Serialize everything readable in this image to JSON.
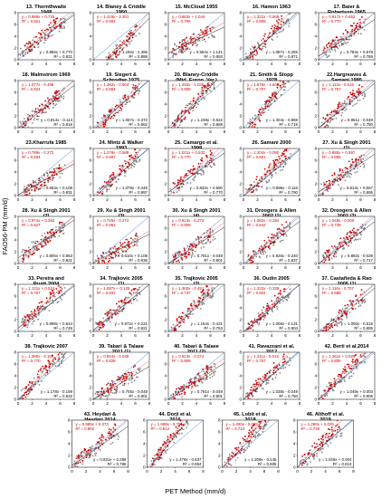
{
  "figure": {
    "xlabel": "PET Method (mm/d)",
    "ylabel": "FAO56-PM (mm/d)",
    "colors": {
      "before": "#d40000",
      "after": "#8a8a8a",
      "line_before": "#ff6a6a",
      "line_after": "#202020"
    }
  },
  "chart_data": [
    {
      "type": "scatter",
      "title": "13. Thornthwaite 1948",
      "axis_max": 8,
      "xticks": [
        0,
        2,
        4,
        6,
        8
      ],
      "yticks": [
        0,
        2,
        4,
        6,
        8
      ],
      "eq_red": [
        "y = 0.986x + 0.725",
        "R² = 0.821"
      ],
      "eq_gray": [
        "y = 0.856x + 0.770",
        "R² = 0.821"
      ]
    },
    {
      "type": "scatter",
      "title": "14. Blaney & Criddle 1950",
      "axis_max": 8,
      "xticks": [
        0,
        2,
        4,
        6,
        8
      ],
      "yticks": [
        0,
        2,
        4,
        6,
        8
      ],
      "eq_red": [
        "y = 1.419x - 3.301",
        "R² = 0.904"
      ],
      "eq_gray": [
        "y = 1.192x - 2.486",
        "R² = 0.888"
      ]
    },
    {
      "type": "scatter",
      "title": "15. McCloud 1955",
      "axis_max": 8,
      "xticks": [
        0,
        2,
        4,
        6,
        8
      ],
      "yticks": [
        0,
        2,
        4,
        6,
        8
      ],
      "eq_red": [
        "y = 0.663x + 1.044",
        "R² = 0.706"
      ],
      "eq_gray": [
        "y = 0.554x + 1.141",
        "R² = 0.693"
      ]
    },
    {
      "type": "scatter",
      "title": "16. Hamon 1963",
      "axis_max": 8,
      "xticks": [
        0,
        2,
        4,
        6,
        8
      ],
      "yticks": [
        0,
        2,
        4,
        6,
        8
      ],
      "eq_red": [
        "y = 1.321x - 0.669",
        "R² = 0.908"
      ],
      "eq_gray": [
        "y = 1.087x - 0.265",
        "R² = 0.871"
      ]
    },
    {
      "type": "scatter",
      "title": "17. Baier & Robertson 1965",
      "axis_max": 8,
      "xticks": [
        0,
        2,
        4,
        6,
        8
      ],
      "yticks": [
        0,
        2,
        4,
        6,
        8
      ],
      "eq_red": [
        "y = 0.917x + 0.652",
        "R² = 0.770"
      ],
      "eq_gray": [
        "y = 0.783x + 0.578",
        "R² = 0.766"
      ]
    },
    {
      "type": "scatter",
      "title": "18. Malmstrom 1969",
      "axis_max": 8,
      "xticks": [
        0,
        2,
        4,
        6,
        8
      ],
      "yticks": [
        0,
        2,
        4,
        6,
        8
      ],
      "eq_red": [
        "y = 1.077x - 0.498",
        "R² = 0.824"
      ],
      "eq_gray": [
        "y = 0.914x - 0.114",
        "R² = 0.818"
      ]
    },
    {
      "type": "scatter",
      "title": "19. Siegert & Schrodter 1975",
      "axis_max": 8,
      "xticks": [
        0,
        2,
        4,
        6,
        8
      ],
      "yticks": [
        0,
        2,
        4,
        6,
        8
      ],
      "eq_red": [
        "y = 1.262x - 0.904",
        "R² = 0.864"
      ],
      "eq_gray": [
        "y = 1.067x - 0.372",
        "R² = 0.862"
      ]
    },
    {
      "type": "scatter",
      "title": "20. Blaney-Criddle (Mid. Europ. Ver.)",
      "axis_max": 8,
      "xticks": [
        0,
        2,
        4,
        6,
        8
      ],
      "yticks": [
        0,
        2,
        4,
        6,
        8
      ],
      "eq_red": [
        "y = 1.492x - 1.030",
        "R² = 0.908"
      ],
      "eq_gray": [
        "y = 1.248x - 0.522",
        "R² = 0.888"
      ]
    },
    {
      "type": "scatter",
      "title": "21. Smith & Stopp 1978",
      "axis_max": 8,
      "xticks": [
        0,
        2,
        4,
        6,
        8
      ],
      "yticks": [
        0,
        2,
        4,
        6,
        8
      ],
      "eq_red": [
        "y = 1.679x - 1.848",
        "R² = 0.707"
      ],
      "eq_gray": [
        "y = 1.404x - 0.969",
        "R² = 0.719"
      ]
    },
    {
      "type": "scatter",
      "title": "22.Hargreaves & Samani 1985",
      "axis_max": 8,
      "xticks": [
        0,
        2,
        4,
        6,
        8
      ],
      "yticks": [
        0,
        2,
        4,
        6,
        8
      ],
      "eq_red": [
        "y = 1.113x - 0.015",
        "R² = 0.757"
      ],
      "eq_gray": [
        "y = 0.951x - 0.049",
        "R² = 0.750"
      ]
    },
    {
      "type": "scatter",
      "title": "23.Kharrufa 1985",
      "axis_max": 8,
      "xticks": [
        0,
        2,
        4,
        6,
        8
      ],
      "yticks": [
        0,
        2,
        4,
        6,
        8
      ],
      "eq_red": [
        "y = 0.789x - 0.272",
        "R² = 0.834"
      ],
      "eq_gray": [
        "y = 0.664x + 0.108",
        "R² = 0.831"
      ]
    },
    {
      "type": "scatter",
      "title": "24. Mintz & Walker 1993",
      "axis_max": 8,
      "xticks": [
        0,
        2,
        4,
        6,
        8
      ],
      "yticks": [
        0,
        2,
        4,
        6,
        8
      ],
      "eq_red": [
        "y = 1.278x - 0.689",
        "R² = 0.897"
      ],
      "eq_gray": [
        "y = 1.079x - 0.445",
        "R² = 0.897"
      ]
    },
    {
      "type": "scatter",
      "title": "25. Camargo et al. 1999",
      "axis_max": 8,
      "xticks": [
        0,
        2,
        4,
        6,
        8
      ],
      "yticks": [
        0,
        2,
        4,
        6,
        8
      ],
      "eq_red": [
        "y = 1.021x + 0.532",
        "R² = 0.770"
      ],
      "eq_gray": [
        "y = 0.832x + 0.580",
        "R² = 0.770"
      ]
    },
    {
      "type": "scatter",
      "title": "26. Samani 2000",
      "axis_max": 8,
      "xticks": [
        0,
        2,
        4,
        6,
        8
      ],
      "yticks": [
        0,
        2,
        4,
        6,
        8
      ],
      "eq_red": [
        "y = 1.204x - 0.090",
        "R² = 0.801"
      ],
      "eq_gray": [
        "y = 0.986x - 0.116",
        "R² = 0.790"
      ]
    },
    {
      "type": "scatter",
      "title": "27. Xu & Singh 2001 (1)",
      "axis_max": 8,
      "xticks": [
        0,
        2,
        4,
        6,
        8
      ],
      "yticks": [
        0,
        2,
        4,
        6,
        8
      ],
      "eq_red": [
        "y = 0.986x + 0.597",
        "R² = 0.895"
      ],
      "eq_gray": [
        "y = 0.813x + 0.567",
        "R² = 0.895"
      ]
    },
    {
      "type": "scatter",
      "title": "28. Xu & Singh 2001 (2)",
      "axis_max": 8,
      "xticks": [
        0,
        2,
        4,
        6,
        8
      ],
      "yticks": [
        0,
        2,
        4,
        6,
        8
      ],
      "eq_red": [
        "y = 0.974x + 0.352",
        "R² = 0.827"
      ],
      "eq_gray": [
        "y = 0.805x + 0.953",
        "R² = 0.821"
      ]
    },
    {
      "type": "scatter",
      "title": "29. Xu & Singh 2001 (3)",
      "axis_max": 8,
      "xticks": [
        0,
        2,
        4,
        6,
        8
      ],
      "yticks": [
        0,
        2,
        4,
        6,
        8
      ],
      "eq_red": [
        "y = 0.725x - 0.272",
        "R² = 0.852"
      ],
      "eq_gray": [
        "y = 0.610x + 0.108",
        "R² = 0.836"
      ]
    },
    {
      "type": "scatter",
      "title": "30. Xu & Singh 2001 (4)",
      "axis_max": 8,
      "xticks": [
        0,
        2,
        4,
        6,
        8
      ],
      "yticks": [
        0,
        2,
        4,
        6,
        8
      ],
      "eq_red": [
        "y = 0.913x - 0.274",
        "R² = 0.808"
      ],
      "eq_gray": [
        "y = 0.781x - 0.049",
        "R² = 0.801"
      ]
    },
    {
      "type": "scatter",
      "title": "31. Droogers & Allen 2002 (1)",
      "axis_max": 8,
      "xticks": [
        0,
        2,
        4,
        6,
        8
      ],
      "yticks": [
        0,
        2,
        4,
        6,
        8
      ],
      "eq_red": [
        "y = 1.082x - 0.294",
        "R² = 0.842"
      ],
      "eq_gray": [
        "y = 0.926x - 0.240",
        "R² = 0.837"
      ]
    },
    {
      "type": "scatter",
      "title": "32. Droogers & Allen 2002 (2)",
      "axis_max": 8,
      "xticks": [
        0,
        2,
        4,
        6,
        8
      ],
      "yticks": [
        0,
        2,
        4,
        6,
        8
      ],
      "eq_red": [
        "y = 1.049x - 0.000",
        "R² = 0.739"
      ],
      "eq_gray": [
        "y = 0.892x - 0.029",
        "R² = 0.717"
      ]
    },
    {
      "type": "scatter",
      "title": "33. Pereira and Pruitt 2004",
      "axis_max": 8,
      "xticks": [
        0,
        2,
        4,
        6,
        8
      ],
      "yticks": [
        0,
        2,
        4,
        6,
        8
      ],
      "eq_red": [
        "y = 1.121x + 0.524",
        "R² = 0.707"
      ],
      "eq_gray": [
        "y = 0.898x + 0.544",
        "R² = 0.749"
      ]
    },
    {
      "type": "scatter",
      "title": "34. Trajkovic 2005 (1)",
      "axis_max": 8,
      "xticks": [
        0,
        2,
        4,
        6,
        8
      ],
      "yticks": [
        0,
        2,
        4,
        6,
        8
      ],
      "eq_red": [
        "y = 1.087x + 0.125",
        "R² = 0.837"
      ],
      "eq_gray": [
        "y = 0.972x + 0.221",
        "R² = 0.821"
      ]
    },
    {
      "type": "scatter",
      "title": "35. Trajkovic 2005 (2)",
      "axis_max": 8,
      "xticks": [
        0,
        2,
        4,
        6,
        8
      ],
      "yticks": [
        0,
        2,
        4,
        6,
        8
      ],
      "eq_red": [
        "y = 1.360x - 0.451",
        "R² = 0.737"
      ],
      "eq_gray": [
        "y = 1.164x - 0.421",
        "R² = 0.763"
      ]
    },
    {
      "type": "scatter",
      "title": "36. Oudin 2005",
      "axis_max": 8,
      "xticks": [
        0,
        2,
        4,
        6,
        8
      ],
      "yticks": [
        0,
        2,
        4,
        6,
        8
      ],
      "eq_red": [
        "y = 1.222x - 0.339",
        "R² = 0.904"
      ],
      "eq_gray": [
        "y = 1.008x - 0.131",
        "R² = 0.904"
      ]
    },
    {
      "type": "scatter",
      "title": "37. Castañeda & Rao 2005 (1)",
      "axis_max": 8,
      "xticks": [
        0,
        2,
        4,
        6,
        8
      ],
      "yticks": [
        0,
        2,
        4,
        6,
        8
      ],
      "eq_red": [
        "y = 1.116x - 0.707",
        "R² = 0.888"
      ],
      "eq_gray": [
        "y = 1.000x - 0.615",
        "R² = 0.885"
      ]
    },
    {
      "type": "scatter",
      "title": "38. Trajkovic 2007",
      "axis_max": 8,
      "xticks": [
        0,
        2,
        4,
        6,
        8
      ],
      "yticks": [
        0,
        2,
        4,
        6,
        8
      ],
      "eq_red": [
        "y = 1.380x - 0.198",
        "R² = 0.770"
      ],
      "eq_gray": [
        "y = 1.178x - 0.159",
        "R² = 0.832"
      ]
    },
    {
      "type": "scatter",
      "title": "39. Tabari & Talaee 2011 (1)",
      "axis_max": 8,
      "xticks": [
        0,
        2,
        4,
        6,
        8
      ],
      "yticks": [
        0,
        2,
        4,
        6,
        8
      ],
      "eq_red": [
        "y = 0.824x - 0.049",
        "R² = 0.829"
      ],
      "eq_gray": [
        "y = 0.705x - 0.049",
        "R² = 0.801"
      ]
    },
    {
      "type": "scatter",
      "title": "40. Tabari & Talaee 2011 (2)",
      "axis_max": 8,
      "xticks": [
        0,
        2,
        4,
        6,
        8
      ],
      "yticks": [
        0,
        2,
        4,
        6,
        8
      ],
      "eq_red": [
        "y = 0.913x - 0.274",
        "R² = 0.808"
      ],
      "eq_gray": [
        "y = 0.781x - 0.049",
        "R² = 0.801"
      ]
    },
    {
      "type": "scatter",
      "title": "41. Ravazzani et al. 2012",
      "axis_max": 8,
      "xticks": [
        0,
        2,
        4,
        6,
        8
      ],
      "yticks": [
        0,
        2,
        4,
        6,
        8
      ],
      "eq_red": [
        "y = 1.211x - 0.015",
        "R² = 0.757"
      ],
      "eq_gray": [
        "y = 1.038x - 0.049",
        "R² = 0.750"
      ]
    },
    {
      "type": "scatter",
      "title": "42. Berti et al.2014",
      "axis_max": 8,
      "xticks": [
        0,
        2,
        4,
        6,
        8
      ],
      "yticks": [
        0,
        2,
        4,
        6,
        8
      ],
      "eq_red": [
        "y = 1.261x + 0.025",
        "R² = 0.806"
      ],
      "eq_gray": [
        "y = 1.049x + 0.003",
        "R² = 0.806"
      ]
    },
    {
      "type": "scatter",
      "title": "43. Heydari & Heydari 2014",
      "axis_max": 8,
      "xticks": [
        0,
        2,
        4,
        6,
        8
      ],
      "yticks": [
        0,
        2,
        4,
        6,
        8
      ],
      "eq_red": [
        "y = 0.985x + 0.373",
        "R² = 0.802"
      ],
      "eq_gray": [
        "y = 0.831x + 0.288",
        "R² = 0.795"
      ]
    },
    {
      "type": "scatter",
      "title": "44. Dorji et al. 2016",
      "axis_max": 8,
      "xticks": [
        0,
        2,
        4,
        6,
        8
      ],
      "yticks": [
        0,
        2,
        4,
        6,
        8
      ],
      "eq_red": [
        "y = 1.698x - 0.755",
        "R² = 0.812"
      ],
      "eq_gray": [
        "y = 1.478x - 0.637",
        "R² = 0.854"
      ]
    },
    {
      "type": "scatter",
      "title": "45. Lobit et al. 2018",
      "axis_max": 8,
      "xticks": [
        0,
        2,
        4,
        6,
        8
      ],
      "yticks": [
        0,
        2,
        4,
        6,
        8
      ],
      "eq_red": [
        "y = 1.400x - 0.085",
        "R² = 0.724"
      ],
      "eq_gray": [
        "y = 1.209x - 0.145",
        "R² = 0.805"
      ]
    },
    {
      "type": "scatter",
      "title": "46. Althoff et al. 2019",
      "axis_max": 8,
      "xticks": [
        0,
        2,
        4,
        6,
        8
      ],
      "yticks": [
        0,
        2,
        4,
        6,
        8
      ],
      "eq_red": [
        "y = 1.250x + 0.025",
        "R² = 0.749"
      ],
      "eq_gray": [
        "y = 1.026x + 0.004",
        "R² = 0.813"
      ]
    }
  ]
}
